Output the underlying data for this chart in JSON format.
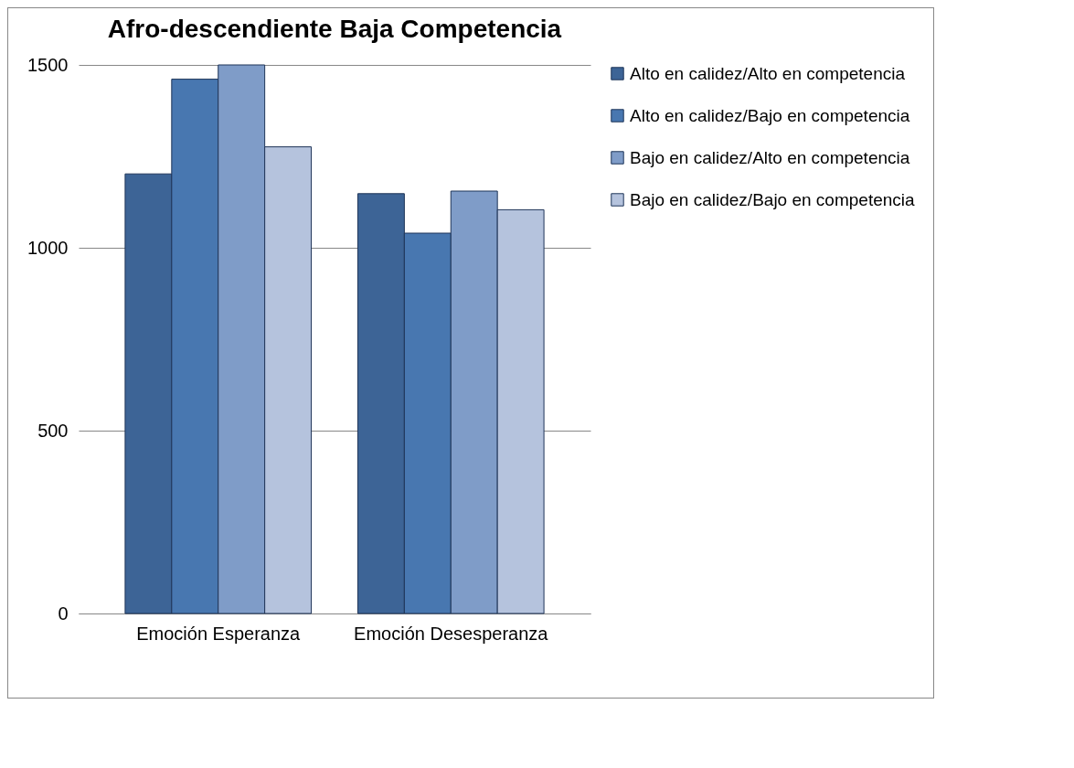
{
  "chart_data": {
    "type": "bar",
    "title": "Afro-descendiente Baja Competencia",
    "categories": [
      "Emoción Esperanza",
      "Emoción Desesperanza"
    ],
    "series": [
      {
        "name": "Alto en calidez/Alto en competencia",
        "color": "#3d6496",
        "values": [
          1202,
          1148
        ]
      },
      {
        "name": "Alto en calidez/Bajo en competencia",
        "color": "#4877b0",
        "values": [
          1461,
          1040
        ]
      },
      {
        "name": "Bajo en calidez/Alto en competencia",
        "color": "#7f9cc8",
        "values": [
          1500,
          1155
        ]
      },
      {
        "name": "Bajo en calidez/Bajo en competencia",
        "color": "#b5c3dd",
        "values": [
          1276,
          1104
        ]
      }
    ],
    "ylim": [
      0,
      1500
    ],
    "yticks": [
      0,
      500,
      1000,
      1500
    ],
    "grid": "y",
    "legend": "right"
  }
}
